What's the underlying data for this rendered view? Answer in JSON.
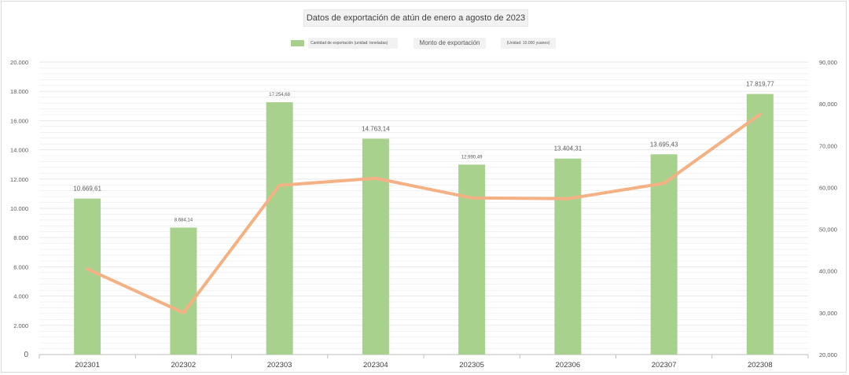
{
  "chart_data": {
    "type": "bar",
    "title": "Datos de exportación de atún de enero a agosto de 2023",
    "categories": [
      "202301",
      "202302",
      "202303",
      "202304",
      "202305",
      "202306",
      "202307",
      "202308"
    ],
    "series": [
      {
        "name": "Cantidad de exportación (unidad: toneladas)",
        "type": "bar",
        "axis": "left",
        "values": [
          10669.61,
          8684.14,
          17254.68,
          14763.14,
          12990.49,
          13404.31,
          13695.43,
          17819.77
        ],
        "labels": [
          "10.669,61",
          "8.684,14",
          "17.254,68",
          "14.763,14",
          "12.990,49",
          "13.404,31",
          "13.695,43",
          "17.819,77"
        ]
      },
      {
        "name": "Monto de exportación",
        "type": "line",
        "axis": "right",
        "values": [
          40.5,
          30.0,
          60.5,
          62.2,
          57.5,
          57.3,
          61.0,
          77.5
        ]
      }
    ],
    "y_left": {
      "ylim": [
        0,
        20000
      ],
      "ticks": [
        0,
        2000,
        4000,
        6000,
        8000,
        10000,
        12000,
        14000,
        16000,
        18000,
        20000
      ],
      "tick_labels": [
        "0",
        "2.000",
        "4.000",
        "6.000",
        "8.000",
        "10.000",
        "12.000",
        "14.000",
        "16.000",
        "18.000",
        "20.000"
      ]
    },
    "y_right": {
      "ylim": [
        20,
        90
      ],
      "ticks": [
        20,
        30,
        40,
        50,
        60,
        70,
        80,
        90
      ],
      "tick_labels": [
        "20,000",
        "30,000",
        "40,000",
        "50,000",
        "60,000",
        "70,000",
        "80,000",
        "90,000"
      ]
    },
    "legend": {
      "placement": "top",
      "bar_label": "Cantidad de exportación (unidad: toneladas)",
      "line_label": "Monto de exportación",
      "unit_label": "(Unidad: 10.000 yuanes)"
    },
    "grid": true,
    "colors": {
      "bar": "#a9d18e",
      "line": "#f4b183",
      "grid": "#e6e6e6",
      "axis": "#bfbfbf"
    }
  }
}
